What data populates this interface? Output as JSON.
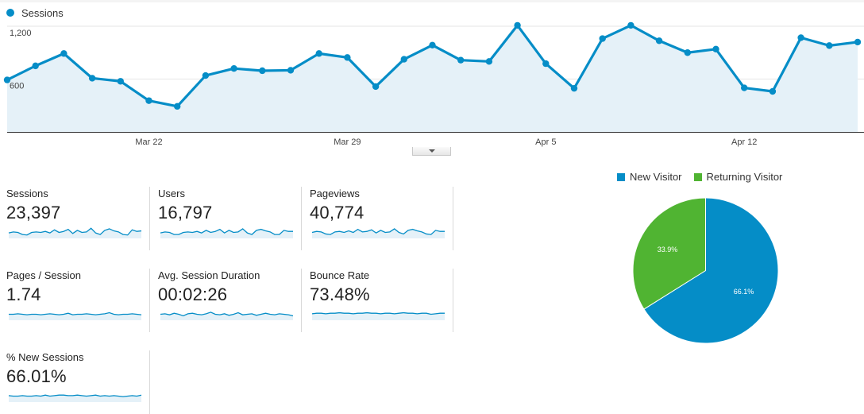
{
  "colors": {
    "sessions_line": "#058dc7",
    "sessions_fill": "#e5f1f8",
    "new_visitor": "#058dc7",
    "returning_visitor": "#50b432",
    "spark_fill": "#e5f1f8",
    "divider": "#d9d9d9"
  },
  "chart_data": [
    {
      "type": "area",
      "series": [
        {
          "name": "Sessions",
          "values": [
            590,
            750,
            890,
            610,
            575,
            355,
            290,
            640,
            720,
            695,
            700,
            890,
            845,
            515,
            825,
            985,
            815,
            800,
            1210,
            775,
            495,
            1060,
            1210,
            1035,
            900,
            940,
            500,
            460,
            1070,
            980,
            1020
          ]
        }
      ],
      "x_tick_labels": [
        "Mar 22",
        "Mar 29",
        "Apr 5",
        "Apr 12"
      ],
      "y_tick_labels": [
        "1,200",
        "600"
      ],
      "ylim": [
        0,
        1200
      ],
      "grid": true,
      "legend_position": "top-left"
    },
    {
      "type": "pie",
      "labels": [
        "New Visitor",
        "Returning Visitor"
      ],
      "values": [
        66.1,
        33.9
      ],
      "data_labels": [
        "66.1%",
        "33.9%"
      ],
      "legend_position": "top"
    }
  ],
  "legend": {
    "sessions_label": "Sessions"
  },
  "metrics": [
    {
      "label": "Sessions",
      "value": "23,397",
      "spark": [
        0.45,
        0.55,
        0.5,
        0.3,
        0.25,
        0.5,
        0.55,
        0.5,
        0.6,
        0.45,
        0.75,
        0.5,
        0.6,
        0.8,
        0.4,
        0.7,
        0.5,
        0.55,
        0.9,
        0.45,
        0.3,
        0.7,
        0.85,
        0.65,
        0.55,
        0.3,
        0.25,
        0.75,
        0.6,
        0.65
      ]
    },
    {
      "label": "Users",
      "value": "16,797",
      "spark": [
        0.45,
        0.55,
        0.5,
        0.3,
        0.3,
        0.5,
        0.55,
        0.5,
        0.6,
        0.45,
        0.7,
        0.5,
        0.6,
        0.8,
        0.45,
        0.7,
        0.5,
        0.55,
        0.85,
        0.45,
        0.3,
        0.7,
        0.8,
        0.65,
        0.55,
        0.3,
        0.3,
        0.7,
        0.6,
        0.6
      ]
    },
    {
      "label": "Pageviews",
      "value": "40,774",
      "spark": [
        0.5,
        0.6,
        0.55,
        0.35,
        0.3,
        0.55,
        0.6,
        0.5,
        0.65,
        0.5,
        0.8,
        0.55,
        0.6,
        0.75,
        0.45,
        0.7,
        0.5,
        0.55,
        0.85,
        0.5,
        0.35,
        0.7,
        0.8,
        0.65,
        0.55,
        0.35,
        0.3,
        0.7,
        0.6,
        0.6
      ]
    },
    {
      "label": "Pages / Session",
      "value": "1.74",
      "spark": [
        0.5,
        0.5,
        0.55,
        0.5,
        0.45,
        0.5,
        0.5,
        0.45,
        0.5,
        0.55,
        0.5,
        0.45,
        0.5,
        0.6,
        0.45,
        0.5,
        0.5,
        0.55,
        0.5,
        0.45,
        0.5,
        0.55,
        0.65,
        0.5,
        0.45,
        0.5,
        0.5,
        0.55,
        0.5,
        0.45
      ]
    },
    {
      "label": "Avg. Session Duration",
      "value": "00:02:26",
      "spark": [
        0.5,
        0.55,
        0.45,
        0.6,
        0.5,
        0.35,
        0.55,
        0.6,
        0.5,
        0.45,
        0.55,
        0.7,
        0.5,
        0.45,
        0.55,
        0.4,
        0.5,
        0.65,
        0.45,
        0.5,
        0.55,
        0.4,
        0.5,
        0.6,
        0.5,
        0.45,
        0.55,
        0.5,
        0.45,
        0.35
      ]
    },
    {
      "label": "Bounce Rate",
      "value": "73.48%",
      "spark": [
        0.55,
        0.6,
        0.6,
        0.55,
        0.6,
        0.6,
        0.65,
        0.6,
        0.6,
        0.55,
        0.6,
        0.6,
        0.65,
        0.6,
        0.6,
        0.55,
        0.6,
        0.6,
        0.55,
        0.6,
        0.65,
        0.6,
        0.6,
        0.55,
        0.6,
        0.6,
        0.5,
        0.55,
        0.6,
        0.6
      ]
    },
    {
      "label": "% New Sessions",
      "value": "66.01%",
      "spark": [
        0.55,
        0.5,
        0.5,
        0.55,
        0.5,
        0.5,
        0.55,
        0.5,
        0.6,
        0.5,
        0.55,
        0.6,
        0.6,
        0.55,
        0.55,
        0.6,
        0.55,
        0.5,
        0.55,
        0.6,
        0.5,
        0.55,
        0.5,
        0.55,
        0.5,
        0.45,
        0.5,
        0.55,
        0.5,
        0.6
      ]
    }
  ]
}
